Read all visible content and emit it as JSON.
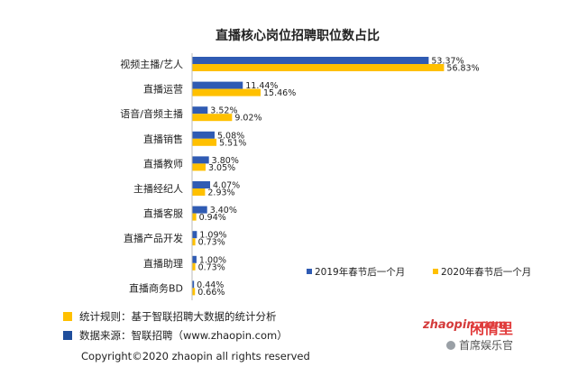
{
  "chart_data": {
    "type": "bar",
    "orientation": "horizontal",
    "title": "直播核心岗位招聘职位数占比",
    "categories": [
      "视频主播/艺人",
      "直播运营",
      "语音/音频主播",
      "直播销售",
      "直播教师",
      "主播经纪人",
      "直播客服",
      "直播产品开发",
      "直播助理",
      "直播商务BD"
    ],
    "series": [
      {
        "name": "2019年春节后一个月",
        "color": "#2f5bb3",
        "values": [
          53.37,
          11.44,
          3.52,
          5.08,
          3.8,
          4.07,
          3.4,
          1.09,
          1.0,
          0.44
        ],
        "labels": [
          "53.37%",
          "11.44%",
          "3.52%",
          "5.08%",
          "3.80%",
          "4.07%",
          "3.40%",
          "1.09%",
          "1.00%",
          "0.44%"
        ]
      },
      {
        "name": "2020年春节后一个月",
        "color": "#ffc000",
        "values": [
          56.83,
          15.46,
          9.02,
          5.51,
          3.05,
          2.93,
          0.94,
          0.73,
          0.73,
          0.66
        ],
        "labels": [
          "56.83%",
          "15.46%",
          "9.02%",
          "5.51%",
          "3.05%",
          "2.93%",
          "0.94%",
          "0.73%",
          "0.73%",
          "0.66%"
        ]
      }
    ],
    "xlim": [
      0,
      60
    ],
    "grid": false,
    "legend_position": "bottom-right"
  },
  "footer": {
    "rule_text": "统计规则：基于智联招聘大数据的统计分析",
    "rule_color": "#ffc000",
    "source_text": "数据来源：智联招聘（www.zhaopin.com）",
    "source_color": "#1f4e9c",
    "copyright": "Copyright©2020 zhaopin all rights reserved"
  },
  "brand": {
    "logo_text": "zhaopin.com",
    "red_text": "闲情里",
    "watermark": "首席娱乐官"
  }
}
